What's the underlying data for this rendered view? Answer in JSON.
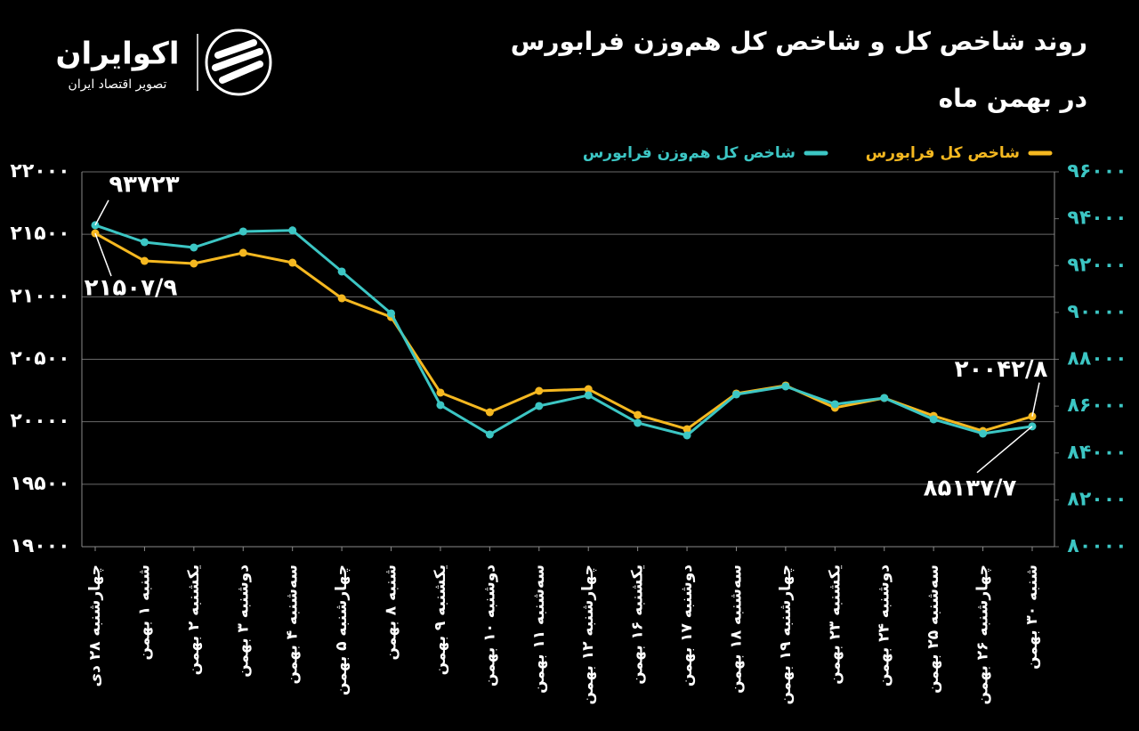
{
  "logo": {
    "name": "اکوایران",
    "tagline": "تصویر اقتصاد ایران"
  },
  "chart_data": {
    "type": "line",
    "title_lines": [
      "روند شاخص کل و شاخص کل هم‌وزن فرابورس",
      "در بهمن ماه"
    ],
    "categories": [
      "چهارشنبه ۲۸ دی",
      "شنبه ۱ بهمن",
      "یکشنبه ۲ بهمن",
      "دوشنبه ۳ بهمن",
      "سه‌شنبه ۴ بهمن",
      "چهارشنبه ۵ بهمن",
      "شنبه ۸ بهمن",
      "یکشنبه ۹ بهمن",
      "دوشنبه ۱۰ بهمن",
      "سه‌شنبه ۱۱ بهمن",
      "چهارشنبه ۱۲ بهمن",
      "یکشنبه ۱۶ بهمن",
      "دوشنبه ۱۷ بهمن",
      "سه‌شنبه ۱۸ بهمن",
      "چهارشنبه ۱۹ بهمن",
      "یکشنبه ۲۳ بهمن",
      "دوشنبه ۲۴ بهمن",
      "سه‌شنبه ۲۵ بهمن",
      "چهارشنبه ۲۶ بهمن",
      "شنبه ۳۰ بهمن"
    ],
    "series": [
      {
        "name": "شاخص کل فرابورس",
        "color": "#f5b820",
        "axis": "y",
        "values": [
          21507.9,
          21287,
          21266,
          21352,
          21273,
          20988,
          20838,
          20233,
          20076,
          20247,
          20261,
          20055,
          19941,
          20226,
          20290,
          20112,
          20190,
          20047,
          19926,
          20042.8
        ],
        "value_labels": [
          "۲۱۵۰۷/۹",
          null,
          null,
          null,
          null,
          null,
          null,
          null,
          null,
          null,
          null,
          null,
          null,
          null,
          null,
          null,
          null,
          null,
          null,
          "۲۰۰۴۲/۸"
        ]
      },
      {
        "name": "شاخص کل هم‌وزن فرابورس",
        "color": "#3cc6c4",
        "axis": "y2",
        "values": [
          93723,
          92998,
          92770,
          93454,
          93500,
          91744,
          89958,
          86044,
          84790,
          86006,
          86462,
          85284,
          84752,
          86500,
          86842,
          86082,
          86348,
          85436,
          84828,
          85137.7
        ],
        "value_labels": [
          "۹۳۷۲۳",
          null,
          null,
          null,
          null,
          null,
          null,
          null,
          null,
          null,
          null,
          null,
          null,
          null,
          null,
          null,
          null,
          null,
          null,
          "۸۵۱۳۷/۷"
        ]
      }
    ],
    "ylim": [
      19000,
      22000
    ],
    "yticks": [
      {
        "value": 19000,
        "label": "۱۹۰۰۰"
      },
      {
        "value": 19500,
        "label": "۱۹۵۰۰"
      },
      {
        "value": 20000,
        "label": "۲۰۰۰۰"
      },
      {
        "value": 20500,
        "label": "۲۰۵۰۰"
      },
      {
        "value": 21000,
        "label": "۲۱۰۰۰"
      },
      {
        "value": 21500,
        "label": "۲۱۵۰۰"
      },
      {
        "value": 22000,
        "label": "۲۲۰۰۰"
      }
    ],
    "y2lim": [
      80000,
      96000
    ],
    "y2ticks": [
      {
        "value": 80000,
        "label": "۸۰۰۰۰"
      },
      {
        "value": 82000,
        "label": "۸۲۰۰۰"
      },
      {
        "value": 84000,
        "label": "۸۴۰۰۰"
      },
      {
        "value": 86000,
        "label": "۸۶۰۰۰"
      },
      {
        "value": 88000,
        "label": "۸۸۰۰۰"
      },
      {
        "value": 90000,
        "label": "۹۰۰۰۰"
      },
      {
        "value": 92000,
        "label": "۹۲۰۰۰"
      },
      {
        "value": 94000,
        "label": "۹۴۰۰۰"
      },
      {
        "value": 96000,
        "label": "۹۶۰۰۰"
      }
    ],
    "grid": true,
    "legend": "top-right"
  }
}
